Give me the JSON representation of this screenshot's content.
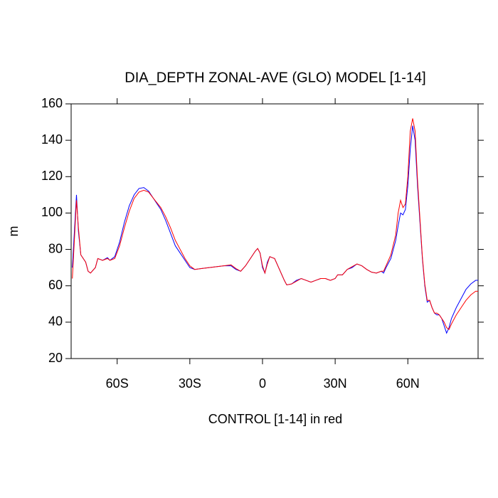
{
  "chart_data": {
    "type": "line",
    "title": "DIA_DEPTH ZONAL-AVE (GLO) MODEL [1-14]",
    "x_label": "CONTROL [1-14] in red",
    "y_label": "m",
    "xlim": [
      -79,
      89
    ],
    "ylim": [
      20,
      160
    ],
    "xticks": [
      {
        "value": -60,
        "label": "60S"
      },
      {
        "value": -30,
        "label": "30S"
      },
      0,
      {
        "value": 30,
        "label": "30N"
      },
      {
        "value": 60,
        "label": "60N"
      }
    ],
    "yticks": [
      20,
      40,
      60,
      80,
      100,
      120,
      140,
      160
    ],
    "x": [
      -78.5,
      -76.8,
      -76,
      -75,
      -73,
      -72,
      -71,
      -69,
      -68,
      -66,
      -64,
      -63,
      -61,
      -59,
      -57,
      -55,
      -53,
      -51,
      -49,
      -47,
      -45,
      -42,
      -40,
      -38,
      -36,
      -34,
      -32,
      -30,
      -28,
      -25,
      -22,
      -19,
      -16,
      -13,
      -11,
      -9,
      -7,
      -5,
      -3,
      -2,
      -1,
      0,
      1,
      2,
      3,
      5,
      7,
      9,
      10,
      12,
      14,
      16,
      18,
      20,
      22,
      24,
      26,
      28,
      30,
      31,
      33,
      35,
      37,
      39,
      41,
      43,
      45,
      47,
      49,
      50,
      51,
      53,
      55,
      56,
      57,
      58,
      59,
      60,
      61,
      62,
      63,
      64,
      65,
      66,
      67,
      68,
      69,
      70,
      71,
      72,
      73,
      74,
      75,
      76,
      77,
      78,
      80,
      82,
      84,
      86,
      88,
      89
    ],
    "series": [
      {
        "color": "#0000ff",
        "values": [
          70,
          110,
          90,
          77,
          73,
          68,
          67,
          70,
          75,
          74,
          75.5,
          74,
          76,
          84,
          95,
          104,
          110,
          113.5,
          114,
          112,
          108,
          102,
          96,
          89,
          82,
          78,
          74,
          70,
          69,
          69.5,
          70,
          70.5,
          71,
          71,
          69,
          68,
          71,
          75,
          79,
          80.5,
          78,
          70,
          67,
          73,
          76,
          75,
          69,
          63,
          60.5,
          61,
          63,
          64,
          63,
          62,
          63,
          64,
          64,
          63,
          64,
          66,
          66,
          69,
          70,
          72,
          71,
          69,
          67.5,
          67,
          68,
          67,
          70,
          75,
          85,
          93,
          100,
          99,
          102,
          115,
          135,
          148,
          140,
          115,
          95,
          75,
          60,
          51,
          52,
          48,
          45,
          44,
          44,
          42,
          38,
          34,
          37,
          42,
          48,
          53,
          58,
          61,
          63,
          63
        ]
      },
      {
        "color": "#ff0000",
        "values": [
          64,
          107,
          92,
          77,
          73,
          68,
          67,
          70,
          75,
          74,
          75,
          74,
          75,
          82,
          92,
          101,
          108,
          111.5,
          112.5,
          111.5,
          108,
          103,
          98,
          92,
          85,
          80,
          75,
          71,
          69,
          69.5,
          70,
          70.5,
          71,
          71.5,
          69.5,
          68,
          71,
          75,
          79,
          80.5,
          78,
          71,
          67,
          72,
          76,
          75,
          69,
          63,
          60.5,
          61,
          62.5,
          64,
          63,
          62,
          63,
          64,
          64,
          63,
          64,
          66,
          66,
          69,
          70.5,
          72,
          71,
          69,
          67.5,
          67,
          68,
          68,
          71,
          77,
          88,
          100,
          107,
          103,
          105,
          120,
          145,
          152,
          145,
          118,
          97,
          76,
          61,
          52,
          52,
          48,
          45,
          45,
          44,
          42,
          40,
          37,
          36,
          39,
          44,
          48,
          52,
          55,
          57,
          57
        ]
      }
    ]
  }
}
